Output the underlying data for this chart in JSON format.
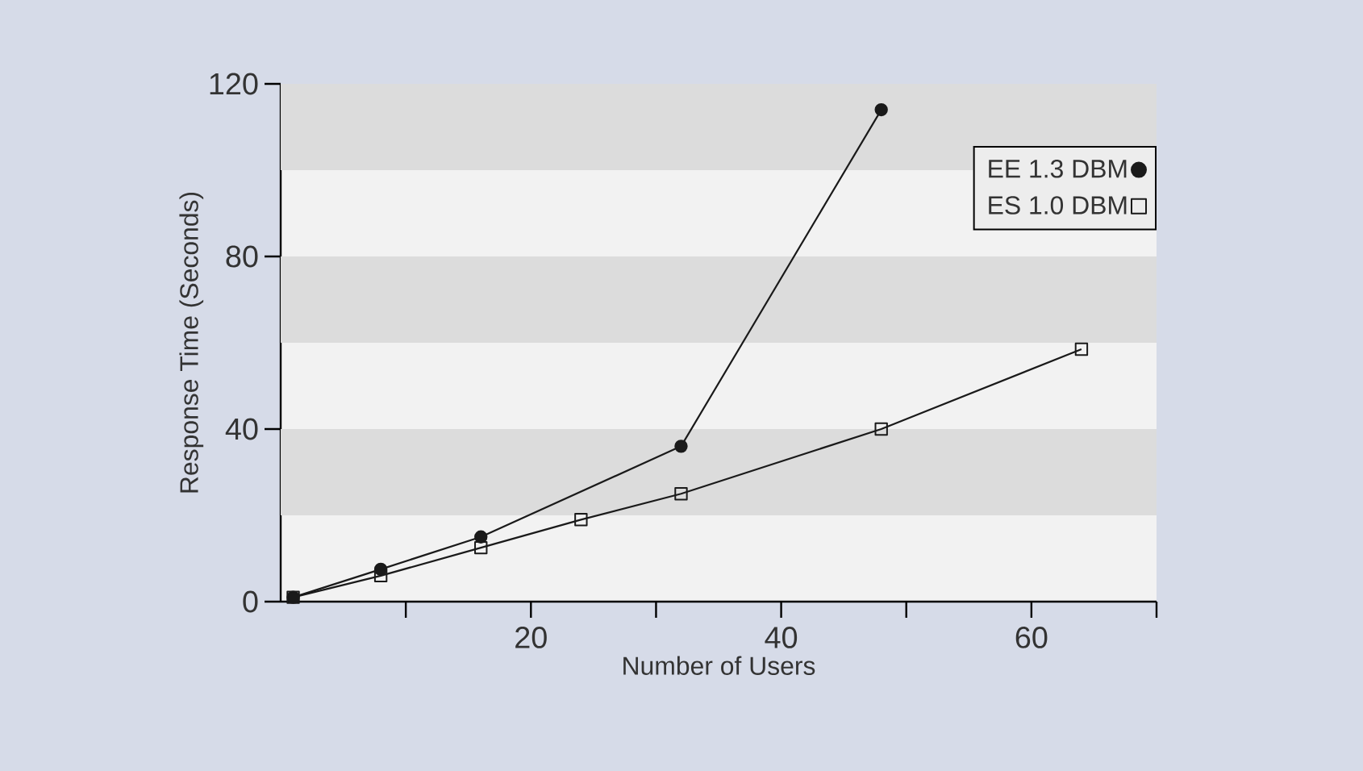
{
  "chart_data": {
    "type": "line",
    "xlabel": "Number of Users",
    "ylabel": "Response Time (Seconds)",
    "xlim": [
      0,
      70
    ],
    "ylim": [
      0,
      120
    ],
    "xticks": [
      {
        "value": 10,
        "label": null
      },
      20,
      {
        "value": 30,
        "label": null
      },
      40,
      {
        "value": 50,
        "label": null
      },
      60,
      {
        "value": 70,
        "label": null
      }
    ],
    "yticks": [
      0,
      40,
      80,
      120
    ],
    "bands": [
      {
        "axis": "y",
        "from": 20,
        "to": 40,
        "color": "#dcdcdc"
      },
      {
        "axis": "y",
        "from": 60,
        "to": 80,
        "color": "#dcdcdc"
      },
      {
        "axis": "y",
        "from": 100,
        "to": 120,
        "color": "#dcdcdc"
      }
    ],
    "legend": "top right",
    "series": [
      {
        "name": "EE 1.3 DBM",
        "color": "#1a1a1a",
        "marker": "circle",
        "x": [
          1,
          8,
          16,
          32,
          48
        ],
        "values": [
          1,
          7.5,
          15,
          36,
          114
        ]
      },
      {
        "name": "ES 1.0 DBM",
        "color": "#1a1a1a",
        "marker": "square",
        "x": [
          1,
          8,
          16,
          24,
          32,
          48,
          64
        ],
        "values": [
          1,
          6,
          12.5,
          19,
          25,
          40,
          58.5
        ]
      }
    ]
  }
}
